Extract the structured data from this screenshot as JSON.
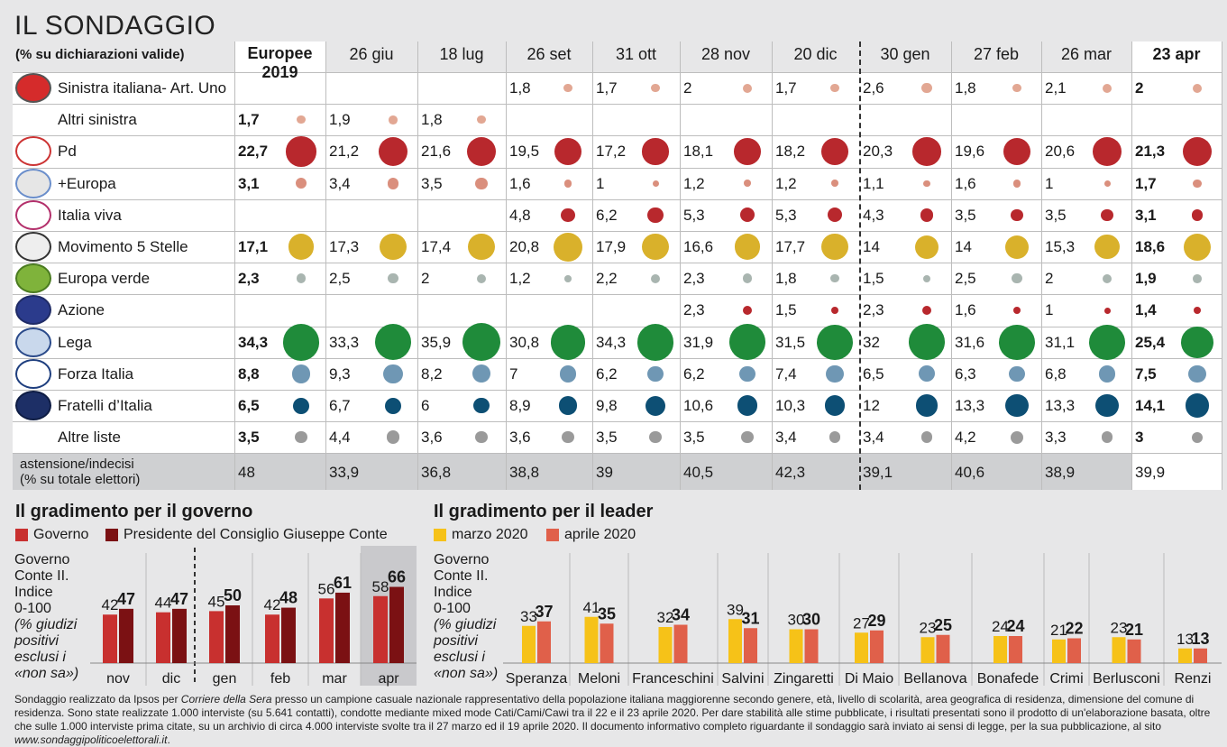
{
  "title": "IL SONDAGGIO",
  "subtitle": "(% su dichiarazioni valide)",
  "columns": [
    "Europee 2019",
    "26 giu",
    "18 lug",
    "26 set",
    "31 ott",
    "28 nov",
    "20 dic",
    "30 gen",
    "27 feb",
    "26 mar",
    "23 apr"
  ],
  "parties": [
    {
      "name": "Sinistra italiana- Art. Uno",
      "color": "#e2a793",
      "values": [
        null,
        null,
        null,
        "1,8",
        "1,7",
        "2",
        "1,7",
        "2,6",
        "1,8",
        "2,1",
        "2"
      ]
    },
    {
      "name": "Altri sinistra",
      "color": "#e2a793",
      "values": [
        "1,7",
        "1,9",
        "1,8",
        null,
        null,
        null,
        null,
        null,
        null,
        null,
        null
      ]
    },
    {
      "name": "Pd",
      "color": "#b8282d",
      "values": [
        "22,7",
        "21,2",
        "21,6",
        "19,5",
        "17,2",
        "18,1",
        "18,2",
        "20,3",
        "19,6",
        "20,6",
        "21,3"
      ]
    },
    {
      "name": "+Europa",
      "color": "#da8f7d",
      "values": [
        "3,1",
        "3,4",
        "3,5",
        "1,6",
        "1",
        "1,2",
        "1,2",
        "1,1",
        "1,6",
        "1",
        "1,7"
      ]
    },
    {
      "name": "Italia viva",
      "color": "#b8282d",
      "values": [
        null,
        null,
        null,
        "4,8",
        "6,2",
        "5,3",
        "5,3",
        "4,3",
        "3,5",
        "3,5",
        "3,1"
      ]
    },
    {
      "name": "Movimento 5 Stelle",
      "color": "#d9b12b",
      "values": [
        "17,1",
        "17,3",
        "17,4",
        "20,8",
        "17,9",
        "16,6",
        "17,7",
        "14",
        "14",
        "15,3",
        "18,6"
      ]
    },
    {
      "name": "Europa verde",
      "color": "#a9b5b0",
      "values": [
        "2,3",
        "2,5",
        "2",
        "1,2",
        "2,2",
        "2,3",
        "1,8",
        "1,5",
        "2,5",
        "2",
        "1,9"
      ]
    },
    {
      "name": "Azione",
      "color": "#b8282d",
      "values": [
        null,
        null,
        null,
        null,
        null,
        "2,3",
        "1,5",
        "2,3",
        "1,6",
        "1",
        "1,4"
      ]
    },
    {
      "name": "Lega",
      "color": "#1f8b3a",
      "values": [
        "34,3",
        "33,3",
        "35,9",
        "30,8",
        "34,3",
        "31,9",
        "31,5",
        "32",
        "31,6",
        "31,1",
        "25,4"
      ]
    },
    {
      "name": "Forza Italia",
      "color": "#6f97b4",
      "values": [
        "8,8",
        "9,3",
        "8,2",
        "7",
        "6,2",
        "6,2",
        "7,4",
        "6,5",
        "6,3",
        "6,8",
        "7,5"
      ]
    },
    {
      "name": "Fratelli d’Italia",
      "color": "#0d4f74",
      "values": [
        "6,5",
        "6,7",
        "6",
        "8,9",
        "9,8",
        "10,6",
        "10,3",
        "12",
        "13,3",
        "13,3",
        "14,1"
      ]
    },
    {
      "name": "Altre liste",
      "color": "#9a9a9a",
      "values": [
        "3,5",
        "4,4",
        "3,6",
        "3,6",
        "3,5",
        "3,5",
        "3,4",
        "3,4",
        "4,2",
        "3,3",
        "3"
      ]
    }
  ],
  "abstention": {
    "label1": "astensione/indecisi",
    "label2": "(% su totale elettori)",
    "values": [
      "48",
      "33,9",
      "36,8",
      "38,8",
      "39",
      "40,5",
      "42,3",
      "39,1",
      "40,6",
      "38,9",
      "39,9"
    ]
  },
  "gov": {
    "title": "Il gradimento per il governo",
    "legend": [
      {
        "label": "Governo",
        "color": "#c8302f"
      },
      {
        "label": "Presidente del Consiglio Giuseppe Conte",
        "color": "#7b1113"
      }
    ],
    "note": [
      "Governo",
      "Conte II.",
      "Indice",
      "0-100",
      "(% giudizi",
      "positivi",
      "esclusi i",
      "«non sa»)"
    ]
  },
  "leader": {
    "title": "Il gradimento per il leader",
    "legend": [
      {
        "label": "marzo 2020",
        "color": "#f6c218"
      },
      {
        "label": "aprile 2020",
        "color": "#e0604a"
      }
    ],
    "note": [
      "Governo",
      "Conte II.",
      "Indice",
      "0-100",
      "(% giudizi",
      "positivi",
      "esclusi i",
      "«non sa»)"
    ]
  },
  "chart_data": [
    {
      "type": "bar",
      "title": "Il gradimento per il governo",
      "categories": [
        "nov",
        "dic",
        "gen",
        "feb",
        "mar",
        "apr"
      ],
      "series": [
        {
          "name": "Governo",
          "values": [
            42,
            44,
            45,
            42,
            56,
            58
          ]
        },
        {
          "name": "Presidente del Consiglio Giuseppe Conte",
          "values": [
            47,
            47,
            50,
            48,
            61,
            66
          ]
        }
      ],
      "ylim": [
        0,
        100
      ]
    },
    {
      "type": "bar",
      "title": "Il gradimento per il leader",
      "categories": [
        "Speranza",
        "Meloni",
        "Franceschini",
        "Salvini",
        "Zingaretti",
        "Di Maio",
        "Bellanova",
        "Bonafede",
        "Crimi",
        "Berlusconi",
        "Renzi"
      ],
      "series": [
        {
          "name": "marzo 2020",
          "values": [
            33,
            41,
            32,
            39,
            30,
            27,
            23,
            24,
            21,
            23,
            13
          ]
        },
        {
          "name": "aprile 2020",
          "values": [
            37,
            35,
            34,
            31,
            30,
            29,
            25,
            24,
            22,
            21,
            13
          ]
        }
      ],
      "ylim": [
        0,
        100
      ]
    }
  ],
  "footnote": {
    "pre": "Sondaggio realizzato da Ipsos per ",
    "paper": "Corriere della Sera",
    "body": " presso un campione casuale nazionale rappresentativo della popolazione italiana maggiorenne secondo genere, età, livello di scolarità, area geografica di residenza, dimensione del comune di residenza. Sono state realizzate 1.000 interviste (su 5.641 contatti), condotte mediante mixed mode Cati/Cami/Cawi tra il 22 e il 23 aprile 2020. Per dare stabilità alle stime pubblicate, i risultati presentati sono il prodotto di un'elaborazione basata, oltre che sulle 1.000 interviste prima citate, su un archivio di circa 4.000 interviste svolte tra il 27 marzo ed il 19 aprile 2020. Il documento informativo completo riguardante il sondaggio sarà inviato ai sensi di legge, per la sua pubblicazione, al sito ",
    "site": "www.sondaggipoliticoelettorali.it",
    "end": "."
  }
}
